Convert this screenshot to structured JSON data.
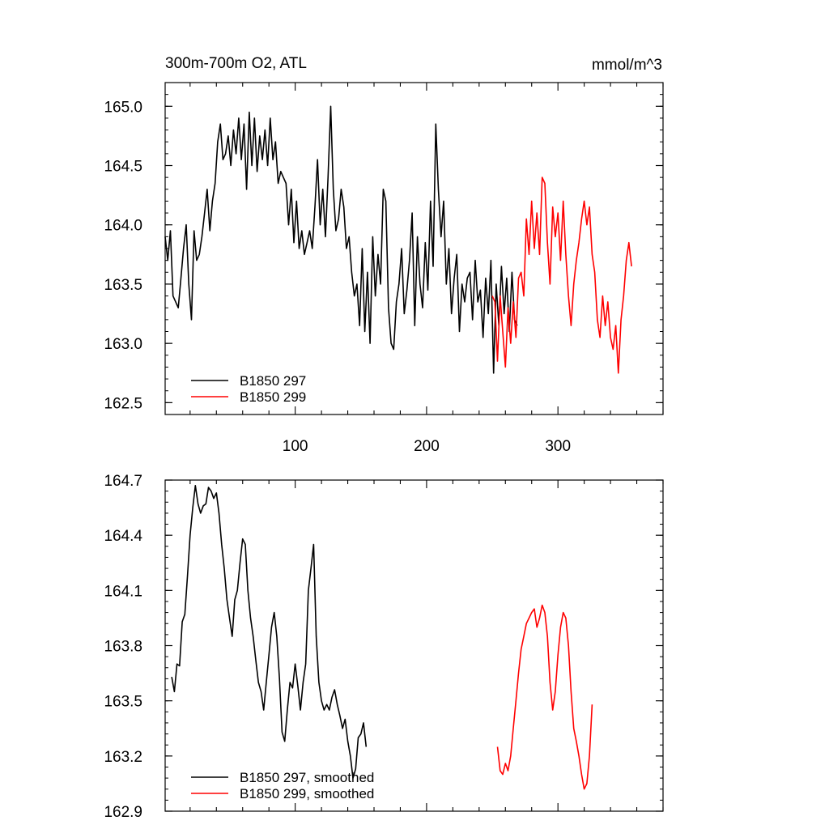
{
  "chart_data": [
    {
      "type": "line",
      "title_left": "300m-700m O2, ATL",
      "title_right": "mmol/m^3",
      "xlim": [
        1,
        380
      ],
      "ylim": [
        162.4,
        165.2
      ],
      "x_ticks": [
        100,
        200,
        300
      ],
      "y_ticks": [
        162.5,
        163.0,
        163.5,
        164.0,
        164.5,
        165.0
      ],
      "y_tick_labels": [
        "162.5",
        "163.0",
        "163.5",
        "164.0",
        "164.5",
        "165.0"
      ],
      "legend_position": "bottom-left",
      "series": [
        {
          "name": "B1850 297",
          "color": "#000000",
          "x_start": 1,
          "values": [
            163.9,
            163.7,
            163.95,
            163.4,
            163.35,
            163.3,
            163.55,
            163.8,
            164.0,
            163.5,
            163.2,
            163.95,
            163.7,
            163.75,
            163.9,
            164.1,
            164.3,
            163.95,
            164.2,
            164.35,
            164.7,
            164.85,
            164.55,
            164.6,
            164.75,
            164.5,
            164.8,
            164.6,
            164.9,
            164.55,
            164.85,
            164.3,
            164.95,
            164.5,
            164.9,
            164.45,
            164.75,
            164.55,
            164.8,
            164.5,
            164.9,
            164.55,
            164.7,
            164.35,
            164.45,
            164.4,
            164.35,
            164.0,
            164.3,
            163.85,
            164.2,
            163.8,
            163.95,
            163.75,
            163.85,
            163.95,
            163.8,
            164.15,
            164.55,
            164.0,
            164.3,
            163.9,
            164.4,
            165.0,
            164.3,
            163.95,
            164.05,
            164.3,
            164.15,
            163.8,
            163.9,
            163.6,
            163.4,
            163.5,
            163.15,
            163.8,
            163.1,
            163.6,
            163.0,
            163.9,
            163.4,
            163.75,
            163.5,
            164.3,
            164.2,
            163.3,
            163.0,
            162.95,
            163.35,
            163.5,
            163.8,
            163.25,
            163.45,
            163.7,
            164.1,
            163.15,
            163.9,
            163.5,
            163.3,
            163.85,
            163.45,
            164.2,
            163.65,
            164.85,
            164.3,
            163.9,
            164.2,
            163.5,
            163.8,
            163.25,
            163.55,
            163.75,
            163.1,
            163.5,
            163.35,
            163.55,
            163.6,
            163.2,
            163.7,
            163.35,
            163.45,
            163.05,
            163.55,
            163.25,
            163.7,
            162.75,
            163.5,
            163.15,
            163.65,
            163.25,
            163.55,
            163.1,
            163.6,
            163.2,
            163.15
          ]
        },
        {
          "name": "B1850 299",
          "color": "#ff0000",
          "x_start": 250,
          "values": [
            163.4,
            163.35,
            162.85,
            163.4,
            163.1,
            162.8,
            163.3,
            163.0,
            163.35,
            163.05,
            163.55,
            163.6,
            163.4,
            164.05,
            163.75,
            164.2,
            163.8,
            164.1,
            163.75,
            164.4,
            164.35,
            163.85,
            163.5,
            164.15,
            163.9,
            164.1,
            163.7,
            164.2,
            163.75,
            163.4,
            163.15,
            163.5,
            163.7,
            163.85,
            164.05,
            164.2,
            164.0,
            164.15,
            163.75,
            163.6,
            163.2,
            163.05,
            163.4,
            163.15,
            163.35,
            163.05,
            162.95,
            163.15,
            162.75,
            163.2,
            163.4,
            163.7,
            163.85,
            163.65
          ]
        }
      ]
    },
    {
      "type": "line",
      "xlim": [
        1,
        380
      ],
      "ylim": [
        162.9,
        164.7
      ],
      "x_ticks": [
        100,
        200,
        300
      ],
      "y_ticks": [
        162.9,
        163.2,
        163.5,
        163.8,
        164.1,
        164.4,
        164.7
      ],
      "y_tick_labels": [
        "162.9",
        "163.2",
        "163.5",
        "163.8",
        "164.1",
        "164.4",
        "164.7"
      ],
      "legend_position": "bottom-left",
      "series": [
        {
          "name": "B1850 297, smoothed",
          "color": "#000000",
          "x_start": 6,
          "values": [
            163.63,
            163.55,
            163.7,
            163.69,
            163.93,
            163.97,
            164.18,
            164.4,
            164.55,
            164.67,
            164.57,
            164.52,
            164.56,
            164.57,
            164.66,
            164.64,
            164.6,
            164.63,
            164.52,
            164.35,
            164.22,
            164.05,
            163.95,
            163.85,
            164.05,
            164.1,
            164.25,
            164.38,
            164.35,
            164.1,
            163.95,
            163.85,
            163.72,
            163.6,
            163.55,
            163.45,
            163.6,
            163.75,
            163.9,
            163.98,
            163.85,
            163.62,
            163.33,
            163.28,
            163.45,
            163.6,
            163.57,
            163.7,
            163.58,
            163.45,
            163.6,
            163.7,
            164.1,
            164.22,
            164.35,
            163.85,
            163.6,
            163.5,
            163.45,
            163.48,
            163.45,
            163.52,
            163.56,
            163.48,
            163.42,
            163.35,
            163.4,
            163.28,
            163.2,
            163.08,
            163.13,
            163.3,
            163.32,
            163.38,
            163.25
          ]
        },
        {
          "name": "B1850 299, smoothed",
          "color": "#ff0000",
          "x_start": 254,
          "values": [
            163.25,
            163.12,
            163.1,
            163.16,
            163.12,
            163.2,
            163.35,
            163.5,
            163.65,
            163.78,
            163.85,
            163.92,
            163.95,
            163.98,
            164.0,
            163.9,
            163.95,
            164.02,
            163.98,
            163.85,
            163.6,
            163.45,
            163.55,
            163.75,
            163.9,
            163.98,
            163.95,
            163.8,
            163.55,
            163.35,
            163.28,
            163.2,
            163.1,
            163.02,
            163.05,
            163.2,
            163.48
          ]
        }
      ]
    }
  ]
}
